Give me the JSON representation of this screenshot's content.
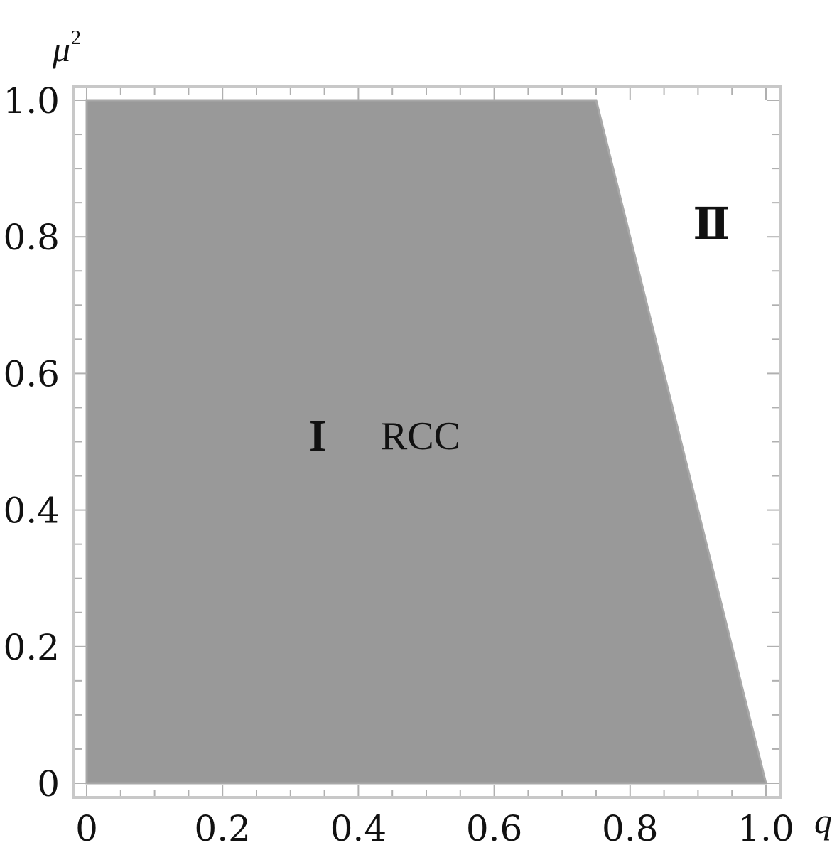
{
  "chart_data": {
    "type": "area",
    "title": "",
    "xlabel": "q",
    "ylabel_base": "μ",
    "ylabel_sup": "2",
    "xlim": [
      0,
      1.0
    ],
    "ylim": [
      0,
      1.0
    ],
    "x_ticks": [
      0,
      0.2,
      0.4,
      0.6,
      0.8,
      1.0
    ],
    "x_tick_labels": [
      "0",
      "0.2",
      "0.4",
      "0.6",
      "0.8",
      "1.0"
    ],
    "y_ticks": [
      0,
      0.2,
      0.4,
      0.6,
      0.8,
      1.0
    ],
    "y_tick_labels": [
      "0",
      "0.2",
      "0.4",
      "0.6",
      "0.8",
      "1.0"
    ],
    "grid": false,
    "region_boundary": {
      "points": [
        [
          0,
          0
        ],
        [
          0,
          1.0
        ],
        [
          0.75,
          1.0
        ],
        [
          1.0,
          0
        ]
      ]
    },
    "region_fill": "#999999",
    "frame_color": "#c8c8c8",
    "regions": [
      {
        "label": "I",
        "x": 0.34,
        "y": 0.51
      },
      {
        "label": "Ⅱ",
        "x": 0.92,
        "y": 0.82
      }
    ],
    "annotations": [
      {
        "text": "RCC",
        "x": 0.48,
        "y": 0.51
      }
    ]
  }
}
